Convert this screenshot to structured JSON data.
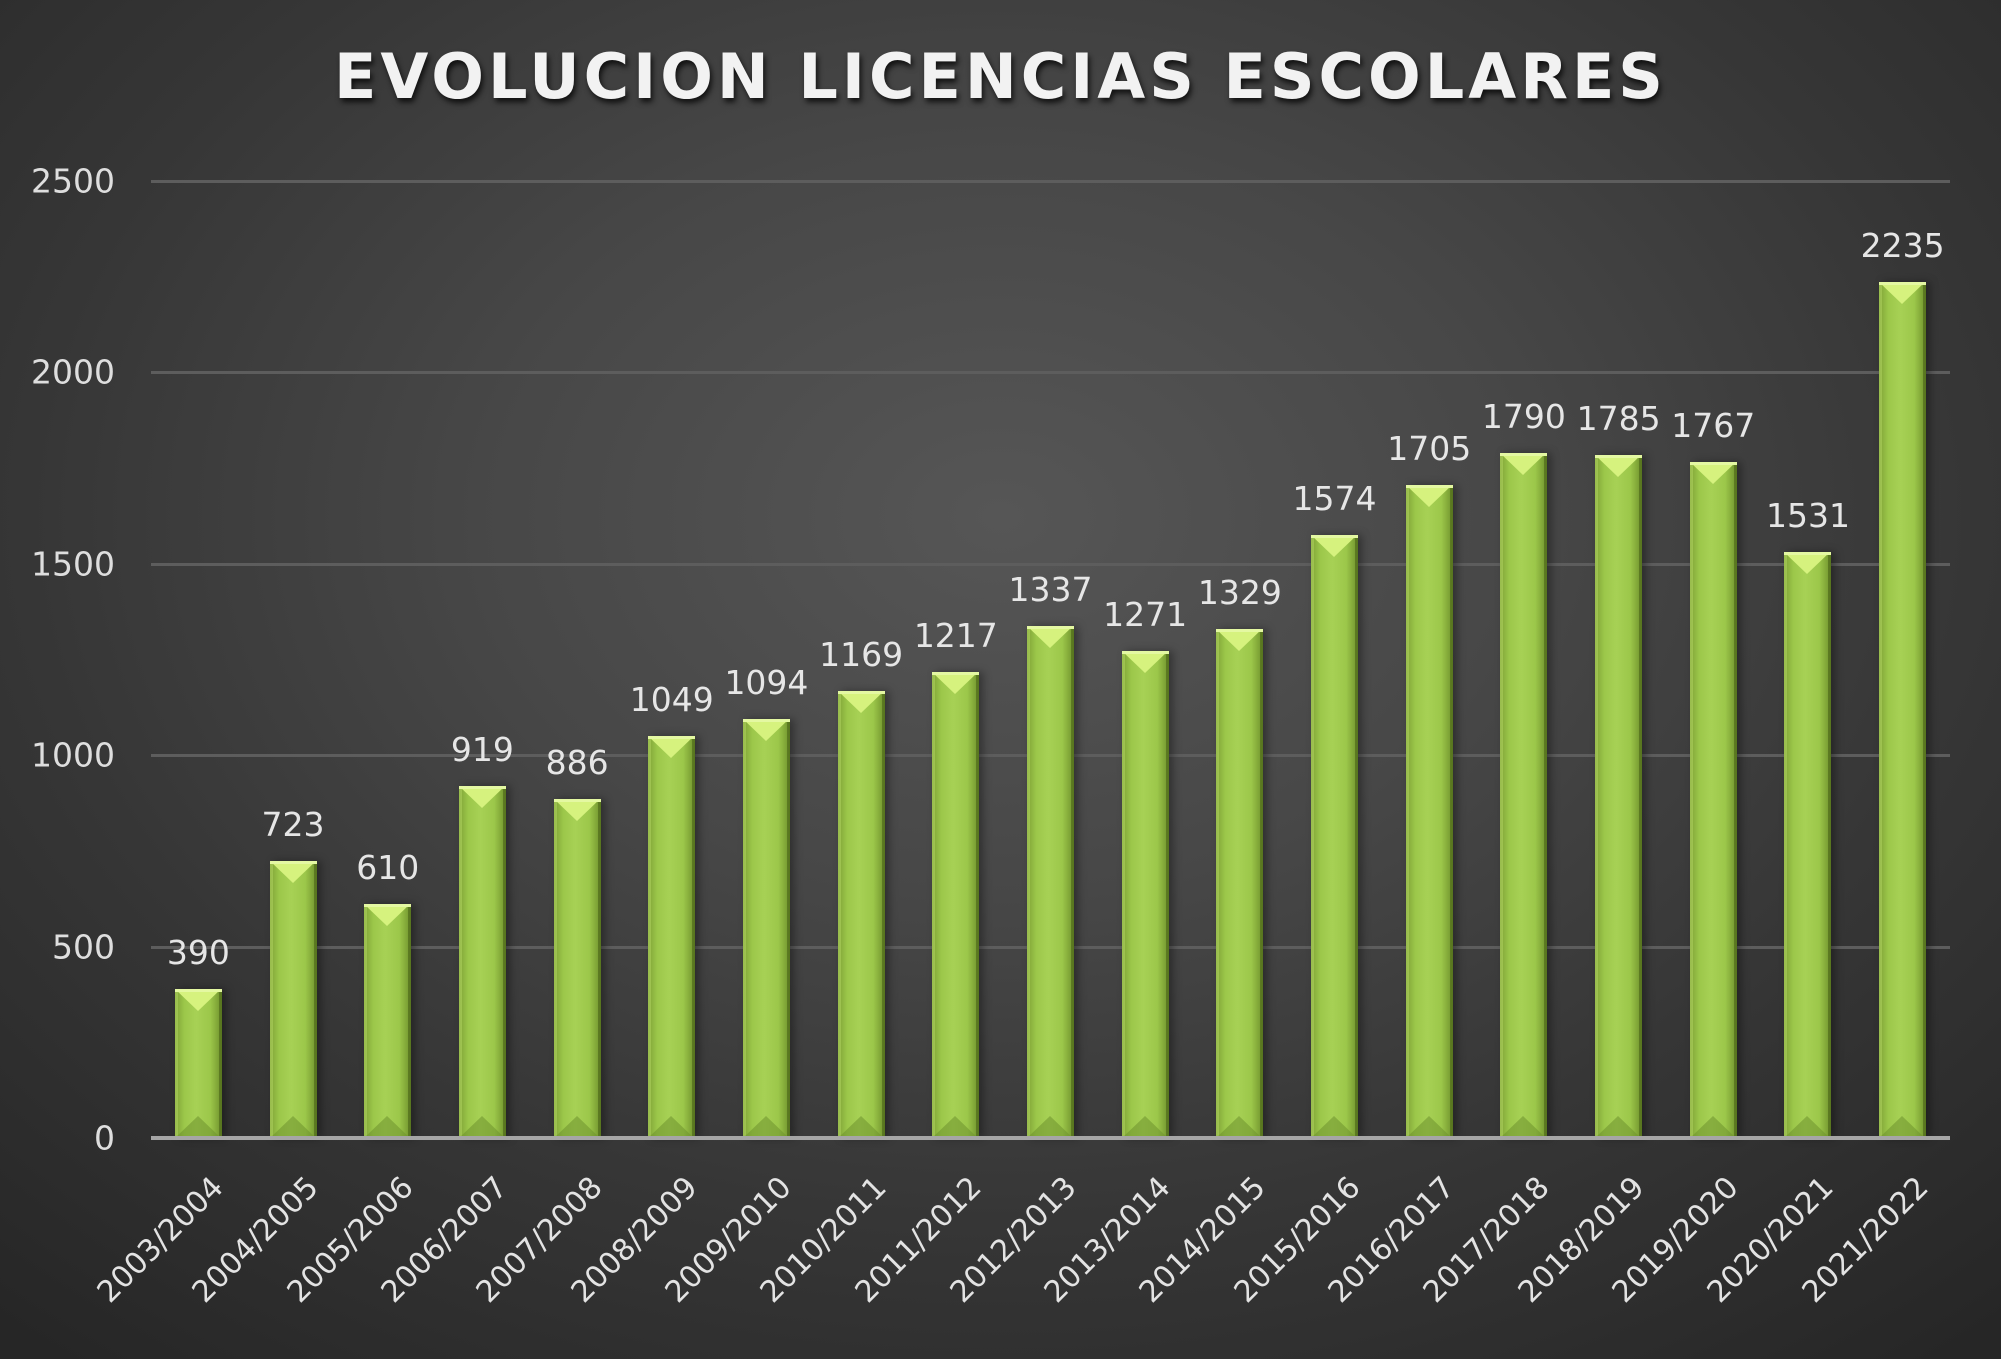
{
  "chart_data": {
    "type": "bar",
    "title": "EVOLUCION LICENCIAS ESCOLARES",
    "xlabel": "",
    "ylabel": "",
    "ylim": [
      0,
      2500
    ],
    "yticks": [
      0,
      500,
      1000,
      1500,
      2000,
      2500
    ],
    "grid": true,
    "legend": null,
    "data_labels": true,
    "categories": [
      "2003/2004",
      "2004/2005",
      "2005/2006",
      "2006/2007",
      "2007/2008",
      "2008/2009",
      "2009/2010",
      "2010/2011",
      "2011/2012",
      "2012/2013",
      "2013/2014",
      "2014/2015",
      "2015/2016",
      "2016/2017",
      "2017/2018",
      "2018/2019",
      "2019/2020",
      "2020/2021",
      "2021/2022"
    ],
    "values": [
      390,
      723,
      610,
      919,
      886,
      1049,
      1094,
      1169,
      1217,
      1337,
      1271,
      1329,
      1574,
      1705,
      1790,
      1785,
      1767,
      1531,
      2235
    ],
    "colors": {
      "bar": "#9dc54a",
      "bar_highlight": "#d6f27e",
      "background_center": "#565656",
      "background_edge": "#262626",
      "gridline": "#5d5d5d",
      "axis": "#a6a6a6",
      "text": "#e6e6e6"
    }
  }
}
